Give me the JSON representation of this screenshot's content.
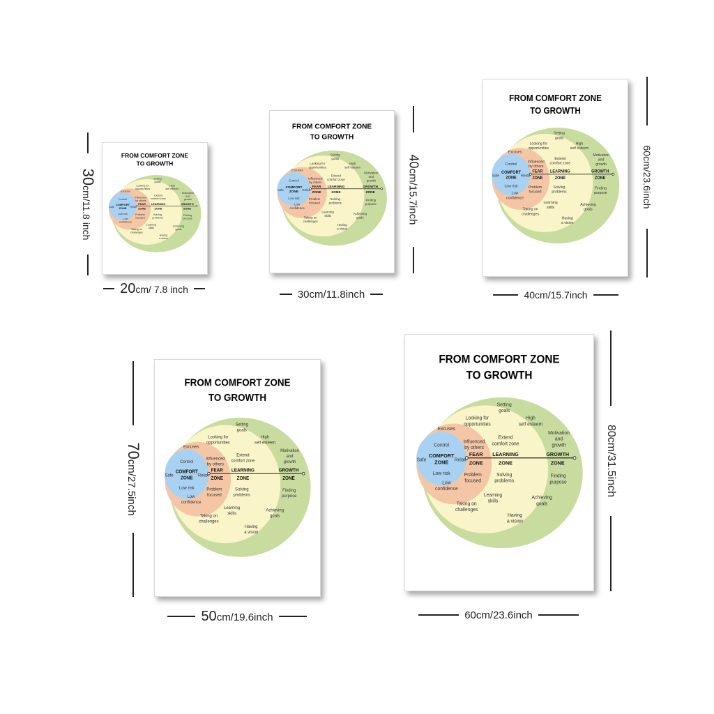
{
  "poster": {
    "title_line1": "FROM COMFORT ZONE",
    "title_line2": "TO GROWTH",
    "colors": {
      "growth": "#c9dca0",
      "learning": "#f9f5c8",
      "fear": "#f5c6a5",
      "comfort": "#a9d2f2"
    },
    "zones": {
      "comfort_1": "COMFORT",
      "comfort_2": "ZONE",
      "fear_1": "FEAR",
      "fear_2": "ZONE",
      "learning_1": "LEARNING",
      "learning_2": "ZONE",
      "growth_1": "GROWTH",
      "growth_2": "ZONE"
    },
    "comfort_items": {
      "control": "Control",
      "safe": "Safe",
      "relax": "Relax",
      "low_risk": "Low risk"
    },
    "fear_items": {
      "excuses": "Excuses",
      "influenced_1": "Influenced",
      "influenced_2": "by others",
      "low_1": "Low",
      "low_2": "confidence",
      "problem_1": "Problem",
      "problem_2": "focused"
    },
    "learning_items": {
      "looking_1": "Looking for",
      "looking_2": "opportunities",
      "extend_1": "Extend",
      "extend_2": "comfort zone",
      "solving_1": "Solving",
      "solving_2": "problems",
      "learning_1": "Learning",
      "learning_2": "skills",
      "taking_1": "Taking on",
      "taking_2": "challenges"
    },
    "growth_items": {
      "setting_1": "Setting",
      "setting_2": "goals",
      "high_1": "High",
      "high_2": "self esteem",
      "motivation_1": "Motivation",
      "motivation_2": "and",
      "motivation_3": "growth",
      "finding_1": "Finding",
      "finding_2": "purpose",
      "achieving_1": "Achieving",
      "achieving_2": "goals",
      "having_1": "Having",
      "having_2": "a vision"
    }
  },
  "sizes": [
    {
      "height_num": "30",
      "height_rest": "cm/11.8 inch",
      "width_num": "20",
      "width_rest": "cm/ 7.8 inch"
    },
    {
      "height_num": "40",
      "height_rest": "cm/15.7inch",
      "width_num": "",
      "width_rest": "30cm/11.8inch"
    },
    {
      "height_num": "",
      "height_rest": "60cm/23.6inch",
      "width_num": "",
      "width_rest": "40cm/15.7inch"
    },
    {
      "height_num": "70",
      "height_rest": "cm/27.5inch",
      "width_num": "50",
      "width_rest": "cm/19.6inch"
    },
    {
      "height_num": "",
      "height_rest": "80cm/31.5inch",
      "width_num": "",
      "width_rest": "60cm/23.6inch"
    }
  ]
}
